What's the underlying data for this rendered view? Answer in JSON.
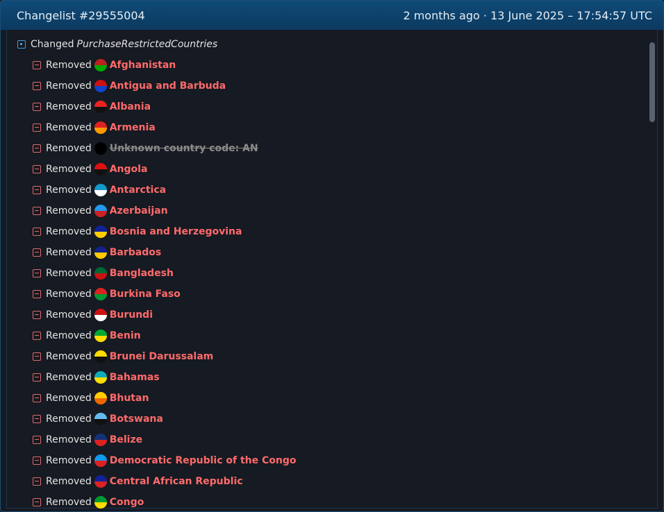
{
  "header": {
    "title": "Changelist #29555004",
    "time": "2 months ago · 13 June 2025 – 17:54:57 UTC"
  },
  "change": {
    "action": "Changed",
    "key": "PurchaseRestrictedCountries",
    "items": [
      {
        "action": "Removed",
        "name": "Afghanistan"
      },
      {
        "action": "Removed",
        "name": "Antigua and Barbuda"
      },
      {
        "action": "Removed",
        "name": "Albania"
      },
      {
        "action": "Removed",
        "name": "Armenia"
      },
      {
        "action": "Removed",
        "name": "Unknown country code: AN",
        "strikethrough": true
      },
      {
        "action": "Removed",
        "name": "Angola"
      },
      {
        "action": "Removed",
        "name": "Antarctica"
      },
      {
        "action": "Removed",
        "name": "Azerbaijan"
      },
      {
        "action": "Removed",
        "name": "Bosnia and Herzegovina"
      },
      {
        "action": "Removed",
        "name": "Barbados"
      },
      {
        "action": "Removed",
        "name": "Bangladesh"
      },
      {
        "action": "Removed",
        "name": "Burkina Faso"
      },
      {
        "action": "Removed",
        "name": "Burundi"
      },
      {
        "action": "Removed",
        "name": "Benin"
      },
      {
        "action": "Removed",
        "name": "Brunei Darussalam"
      },
      {
        "action": "Removed",
        "name": "Bahamas"
      },
      {
        "action": "Removed",
        "name": "Bhutan"
      },
      {
        "action": "Removed",
        "name": "Botswana"
      },
      {
        "action": "Removed",
        "name": "Belize"
      },
      {
        "action": "Removed",
        "name": "Democratic Republic of the Congo"
      },
      {
        "action": "Removed",
        "name": "Central African Republic"
      },
      {
        "action": "Removed",
        "name": "Congo"
      }
    ]
  }
}
